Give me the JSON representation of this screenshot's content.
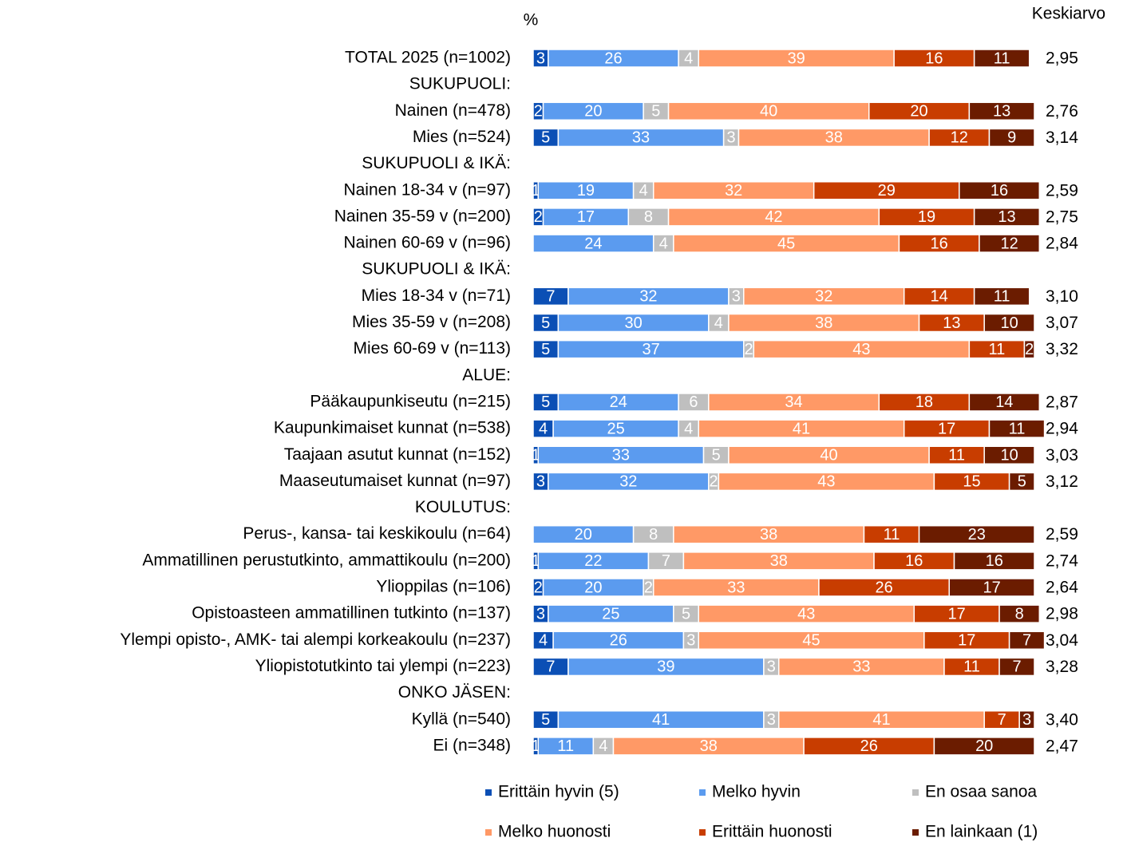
{
  "chart_data": {
    "type": "stacked_bar_horizontal",
    "unit_label": "%",
    "categories": [
      "TOTAL 2025 (n=1002)",
      "SUKUPUOLI:",
      "Nainen (n=478)",
      "Mies (n=524)",
      "SUKUPUOLI & IKÄ:",
      "Nainen 18-34 v (n=97)",
      "Nainen 35-59 v (n=200)",
      "Nainen 60-69 v (n=96)",
      "SUKUPUOLI & IKÄ:",
      "Mies 18-34 v (n=71)",
      "Mies 35-59 v (n=208)",
      "Mies 60-69 v (n=113)",
      "ALUE:",
      "Pääkaupunkiseutu (n=215)",
      "Kaupunkimaiset kunnat (n=538)",
      "Taajaan asutut kunnat (n=152)",
      "Maaseutumaiset kunnat (n=97)",
      "KOULUTUS:",
      "Perus-, kansa- tai keskikoulu (n=64)",
      "Ammatillinen perustutkinto, ammattikoulu (n=200)",
      "Ylioppilas (n=106)",
      "Opistoasteen ammatillinen tutkinto (n=137)",
      "Ylempi opisto-, AMK- tai alempi korkeakoulu (n=237)",
      "Yliopistotutkinto tai ylempi (n=223)",
      "ONKO JÄSEN:",
      "Kyllä (n=540)",
      "Ei (n=348)"
    ],
    "series": [
      {
        "name": "Erittäin hyvin (5)",
        "color": "#0b4fb5",
        "values": [
          3,
          null,
          2,
          5,
          null,
          1,
          2,
          null,
          null,
          7,
          5,
          5,
          null,
          5,
          4,
          1,
          3,
          null,
          null,
          1,
          2,
          3,
          4,
          7,
          null,
          5,
          1
        ]
      },
      {
        "name": "Melko hyvin",
        "color": "#5b9bef",
        "values": [
          26,
          null,
          20,
          33,
          null,
          19,
          17,
          24,
          null,
          32,
          30,
          37,
          null,
          24,
          25,
          33,
          32,
          null,
          20,
          22,
          20,
          25,
          26,
          39,
          null,
          41,
          11
        ]
      },
      {
        "name": "En osaa sanoa",
        "color": "#bfbfbf",
        "values": [
          4,
          null,
          5,
          3,
          null,
          4,
          8,
          4,
          null,
          3,
          4,
          2,
          null,
          6,
          4,
          5,
          2,
          null,
          8,
          7,
          2,
          5,
          3,
          3,
          null,
          3,
          4
        ]
      },
      {
        "name": "Melko huonosti",
        "color": "#ff9966",
        "values": [
          39,
          null,
          40,
          38,
          null,
          32,
          42,
          45,
          null,
          32,
          38,
          43,
          null,
          34,
          41,
          40,
          43,
          null,
          38,
          38,
          33,
          43,
          45,
          33,
          null,
          41,
          38
        ]
      },
      {
        "name": "Erittäin huonosti",
        "color": "#c83d00",
        "values": [
          16,
          null,
          20,
          12,
          null,
          29,
          19,
          16,
          null,
          14,
          13,
          11,
          null,
          18,
          17,
          11,
          15,
          null,
          11,
          16,
          26,
          17,
          17,
          11,
          null,
          7,
          26
        ]
      },
      {
        "name": "En lainkaan (1)",
        "color": "#6b1c00",
        "values": [
          11,
          null,
          13,
          9,
          null,
          16,
          13,
          12,
          null,
          11,
          10,
          2,
          null,
          14,
          11,
          10,
          5,
          null,
          23,
          16,
          17,
          8,
          7,
          7,
          null,
          3,
          20
        ]
      }
    ],
    "average": {
      "name": "Keskiarvo",
      "values": [
        2.95,
        null,
        2.76,
        3.14,
        null,
        2.59,
        2.75,
        2.84,
        null,
        3.1,
        3.07,
        3.32,
        null,
        2.87,
        2.94,
        3.03,
        3.12,
        null,
        2.59,
        2.74,
        2.64,
        2.98,
        3.04,
        3.28,
        null,
        3.4,
        2.47
      ],
      "value_labels": [
        "2,95",
        null,
        "2,76",
        "3,14",
        null,
        "2,59",
        "2,75",
        "2,84",
        null,
        "3,10",
        "3,07",
        "3,32",
        null,
        "2,87",
        "2,94",
        "3,03",
        "3,12",
        null,
        "2,59",
        "2,74",
        "2,64",
        "2,98",
        "3,04",
        "3,28",
        null,
        "3,40",
        "2,47"
      ]
    },
    "xlim": [
      0,
      100
    ],
    "legend": "bottom"
  }
}
